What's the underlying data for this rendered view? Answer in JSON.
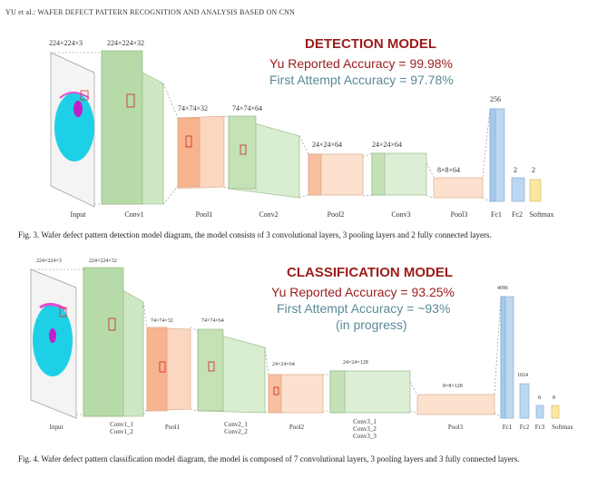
{
  "header": "YU et al.: WAFER DEFECT PATTERN RECOGNITION AND ANALYSIS BASED ON CNN",
  "detection": {
    "title": "DETECTION MODEL",
    "yu_accuracy": "Yu Reported Accuracy = 99.98%",
    "first_accuracy": "First Attempt Accuracy = 97.78%",
    "caption": "Fig. 3.   Wafer defect pattern detection model diagram, the model consists of 3 convolutional layers, 3 pooling layers and 2 fully connected layers.",
    "dims": [
      "224×224×3",
      "224×224×32",
      "74×74×32",
      "74×74×64",
      "24×24×64",
      "24×24×64",
      "8×8×64",
      "256",
      "2",
      "2"
    ],
    "layers": [
      "Input",
      "Conv1",
      "Pool1",
      "Conv2",
      "Pool2",
      "Conv3",
      "Pool3",
      "Fc1",
      "Fc2",
      "Softmax"
    ]
  },
  "classification": {
    "title": "CLASSIFICATION MODEL",
    "yu_accuracy": "Yu Reported Accuracy = 93.25%",
    "first_accuracy": "First Attempt Accuracy = ~93%",
    "progress": "(in progress)",
    "caption": "Fig. 4.   Wafer defect pattern classification model diagram, the model is composed of 7 convolutional layers, 3 pooling layers and 3 fully connected layers.",
    "dims": [
      "224×224×3",
      "224×224×32",
      "74×74×32",
      "74×74×64",
      "24×24×64",
      "24×24×128",
      "8×8×128",
      "4096",
      "1024",
      "8",
      "8"
    ],
    "layers": [
      "Input",
      "Conv1_1\nConv1_2",
      "Pool1",
      "Conv2_1\nConv2_2",
      "Pool2",
      "Conv3_1\nConv3_2\nConv3_3",
      "Pool3",
      "Fc1",
      "Fc2",
      "Fc3",
      "Softmax"
    ]
  },
  "colors": {
    "conv": "#cfe8c4",
    "pool": "#fbd6c0",
    "fc": "#bcd7ef",
    "softmax": "#fce7a0",
    "wafer": "#1ed0e6",
    "title_red": "#9b1c1c",
    "title_teal": "#5a8a96"
  }
}
